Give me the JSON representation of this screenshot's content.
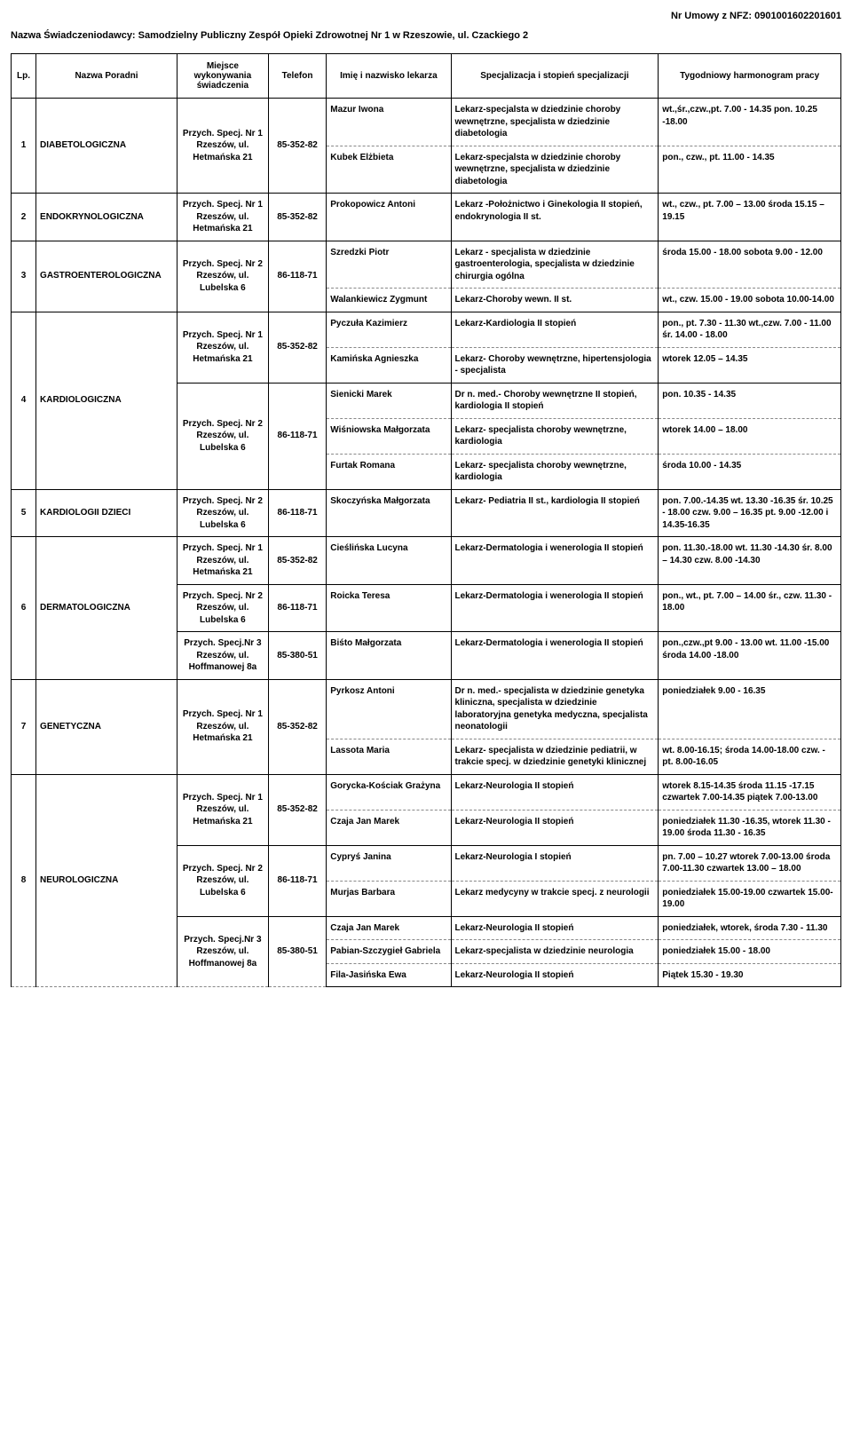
{
  "header": {
    "contract_label": "Nr Umowy z NFZ: 0901001602201601",
    "provider_label": "Nazwa Świadczeniodawcy:  Samodzielny Publiczny Zespół Opieki Zdrowotnej Nr 1 w  Rzeszowie, ul. Czackiego 2"
  },
  "columns": {
    "lp": "Lp.",
    "clinic": "Nazwa Poradni",
    "place": "Miejsce wykonywania świadczenia",
    "phone": "Telefon",
    "doctor": "Imię i nazwisko lekarza",
    "spec": "Specjalizacja i stopień specjalizacji",
    "schedule": "Tygodniowy harmonogram pracy"
  },
  "places": {
    "het": "Przych. Specj. Nr 1 Rzeszów, ul. Hetmańska 21",
    "lub": "Przych. Specj. Nr 2 Rzeszów, ul. Lubelska 6",
    "hof": "Przych. Specj.Nr 3 Rzeszów, ul. Hoffmanowej 8a"
  },
  "phones": {
    "het": "85-352-82",
    "lub": "86-118-71",
    "hof": "85-380-51"
  },
  "rows": [
    {
      "lp": "1",
      "clinic": "DIABETOLOGICZNA",
      "place": "het",
      "phone": "het",
      "rowspan_place": 2,
      "rowspan_lp": 2,
      "doctor": "Mazur Iwona",
      "spec": "Lekarz-specjalsta w dziedzinie choroby wewnętrzne, specjalista w dziedzinie diabetologia",
      "schedule": "wt.,śr.,czw.,pt.  7.00 - 14.35 pon. 10.25 -18.00",
      "block_start": true
    },
    {
      "doctor": "Kubek Elżbieta",
      "spec": "Lekarz-specjalsta w dziedzinie choroby wewnętrzne, specjalista w dziedzinie diabetologia",
      "schedule": "pon., czw., pt.  11.00 - 14.35",
      "group_end": true
    },
    {
      "lp": "2",
      "clinic": "ENDOKRYNOLOGICZNA",
      "place": "het",
      "phone": "het",
      "rowspan_place": 1,
      "rowspan_lp": 1,
      "doctor": "Prokopowicz Antoni",
      "spec": "Lekarz -Położnictwo i Ginekologia II stopień, endokrynologia II st.",
      "schedule": "wt.,  czw., pt.  7.00 – 13.00 środa  15.15 – 19.15",
      "block_start": true,
      "group_end": true
    },
    {
      "lp": "3",
      "clinic": "GASTROENTEROLOGICZNA",
      "place": "lub",
      "phone": "lub",
      "rowspan_place": 2,
      "rowspan_lp": 2,
      "doctor": "Szredzki Piotr",
      "spec": "Lekarz - specjalista w dziedzinie gastroenterologia, specjalista w dziedzinie chirurgia ogólna",
      "schedule": "środa 15.00 - 18.00 sobota 9.00 - 12.00",
      "block_start": true
    },
    {
      "doctor": "Walankiewicz Zygmunt",
      "spec": "Lekarz-Choroby wewn. II st.",
      "schedule": "wt., czw.  15.00 - 19.00        sobota 10.00-14.00",
      "group_end": true
    },
    {
      "lp": "4",
      "clinic": "KARDIOLOGICZNA",
      "place": "het",
      "phone": "het",
      "rowspan_place": 2,
      "rowspan_lp": 5,
      "doctor": "Pyczuła Kazimierz",
      "spec": "Lekarz-Kardiologia II stopień",
      "schedule": "pon., pt. 7.30 - 11.30 wt.,czw. 7.00 - 11.00 śr. 14.00 - 18.00",
      "block_start": true
    },
    {
      "doctor": "Kamińska Agnieszka",
      "spec": "Lekarz- Choroby wewnętrzne, hipertensjologia - specjalista",
      "schedule": "wtorek 12.05 – 14.35"
    },
    {
      "place": "lub",
      "phone": "lub",
      "rowspan_place": 3,
      "doctor": "Sienicki Marek",
      "spec": "Dr n. med.- Choroby wewnętrzne II stopień, kardiologia II stopień",
      "schedule": "pon. 10.35 - 14.35",
      "block_start": true
    },
    {
      "doctor": "Wiśniowska Małgorzata",
      "spec": "Lekarz- specjalista choroby wewnętrzne, kardiologia",
      "schedule": "wtorek 14.00 – 18.00"
    },
    {
      "doctor": "Furtak Romana",
      "spec": "Lekarz- specjalista choroby wewnętrzne, kardiologia",
      "schedule": "środa  10.00 - 14.35",
      "group_end": true
    },
    {
      "lp": "5",
      "clinic": "KARDIOLOGII DZIECI",
      "place": "lub",
      "phone": "lub",
      "rowspan_place": 1,
      "rowspan_lp": 1,
      "doctor": "Skoczyńska Małgorzata",
      "spec": "Lekarz- Pediatria II st., kardiologia  II stopień",
      "schedule": "pon. 7.00.-14.35\nwt. 13.30 -16.35                      śr. 10.25 - 18.00                    czw. 9.00 – 16.35                       pt. 9.00 -12.00 i 14.35-16.35",
      "block_start": true,
      "group_end": true
    },
    {
      "lp": "6",
      "clinic": "DERMATOLOGICZNA",
      "place": "het",
      "phone": "het",
      "rowspan_place": 1,
      "rowspan_lp": 3,
      "doctor": "Cieślińska Lucyna",
      "spec": "Lekarz-Dermatologia i wenerologia II stopień",
      "schedule": "pon. 11.30.-18.00                   wt. 11.30 -14.30                      śr. 8.00 – 14.30                      czw. 8.00 -14.30",
      "block_start": true
    },
    {
      "place": "lub",
      "phone": "lub",
      "rowspan_place": 1,
      "doctor": "Roicka Teresa",
      "spec": "Lekarz-Dermatologia i wenerologia  II stopień",
      "schedule": "pon., wt., pt. 7.00 – 14.00      śr., czw.  11.30 - 18.00",
      "block_start": true
    },
    {
      "place": "hof",
      "phone": "hof",
      "rowspan_place": 1,
      "doctor": "Biśto Małgorzata",
      "spec": "Lekarz-Dermatologia i wenerologia II stopień",
      "schedule": "pon.,czw.,pt  9.00 - 13.00 wt. 11.00 -15.00 środa 14.00 -18.00",
      "block_start": true,
      "group_end": true
    },
    {
      "lp": "7",
      "clinic": "GENETYCZNA",
      "place": "het",
      "phone": "het",
      "rowspan_place": 2,
      "rowspan_lp": 2,
      "doctor": "Pyrkosz Antoni",
      "spec": "Dr n. med.- specjalista w dziedzinie genetyka kliniczna, specjalista w dziedzinie laboratoryjna genetyka medyczna, specjalista neonatologii",
      "schedule": "poniedziałek  9.00 - 16.35",
      "block_start": true
    },
    {
      "doctor": "Lassota Maria",
      "spec": "Lekarz- specjalista w dziedzinie pediatrii, w trakcie specj. w dziedzinie genetyki klinicznej",
      "schedule": "wt. 8.00-16.15; środa  14.00-18.00 czw. - pt. 8.00-16.05",
      "group_end": true
    },
    {
      "lp": "8",
      "clinic": "NEUROLOGICZNA",
      "place": "het",
      "phone": "het",
      "rowspan_place": 2,
      "rowspan_lp": 7,
      "doctor": "Gorycka-Kościak Grażyna",
      "spec": "Lekarz-Neurologia II stopień",
      "schedule": "wtorek 8.15-14.35 środa  11.15 -17.15 czwartek 7.00-14.35 piątek 7.00-13.00",
      "block_start": true
    },
    {
      "doctor": "Czaja Jan Marek",
      "spec": "Lekarz-Neurologia II stopień",
      "schedule": "poniedziałek 11.30 -16.35, wtorek 11.30 - 19.00 środa 11.30 - 16.35"
    },
    {
      "place": "lub",
      "phone": "lub",
      "rowspan_place": 2,
      "doctor": "Cypryś Janina",
      "spec": "Lekarz-Neurologia I stopień",
      "schedule": "pn. 7.00 – 10.27 wtorek 7.00-13.00 środa  7.00-11.30 czwartek 13.00 – 18.00",
      "block_start": true
    },
    {
      "doctor": "Murjas Barbara",
      "spec": "Lekarz  medycyny w trakcie specj. z neurologii",
      "schedule": "poniedziałek  15.00-19.00 czwartek  15.00-19.00"
    },
    {
      "place": "hof",
      "phone": "hof",
      "rowspan_place": 3,
      "doctor": "Czaja Jan Marek",
      "spec": "Lekarz-Neurologia II stopień",
      "schedule": "poniedziałek, wtorek, środa 7.30 - 11.30",
      "block_start": true
    },
    {
      "doctor": "Pabian-Szczygieł Gabriela",
      "spec": "Lekarz-specjalista w dziedzinie neurologia",
      "schedule": "poniedziałek 15.00 - 18.00"
    },
    {
      "doctor": "Fila-Jasińska Ewa",
      "spec": "Lekarz-Neurologia II stopień",
      "schedule": "Piątek  15.30 - 19.30",
      "group_end": true
    }
  ]
}
